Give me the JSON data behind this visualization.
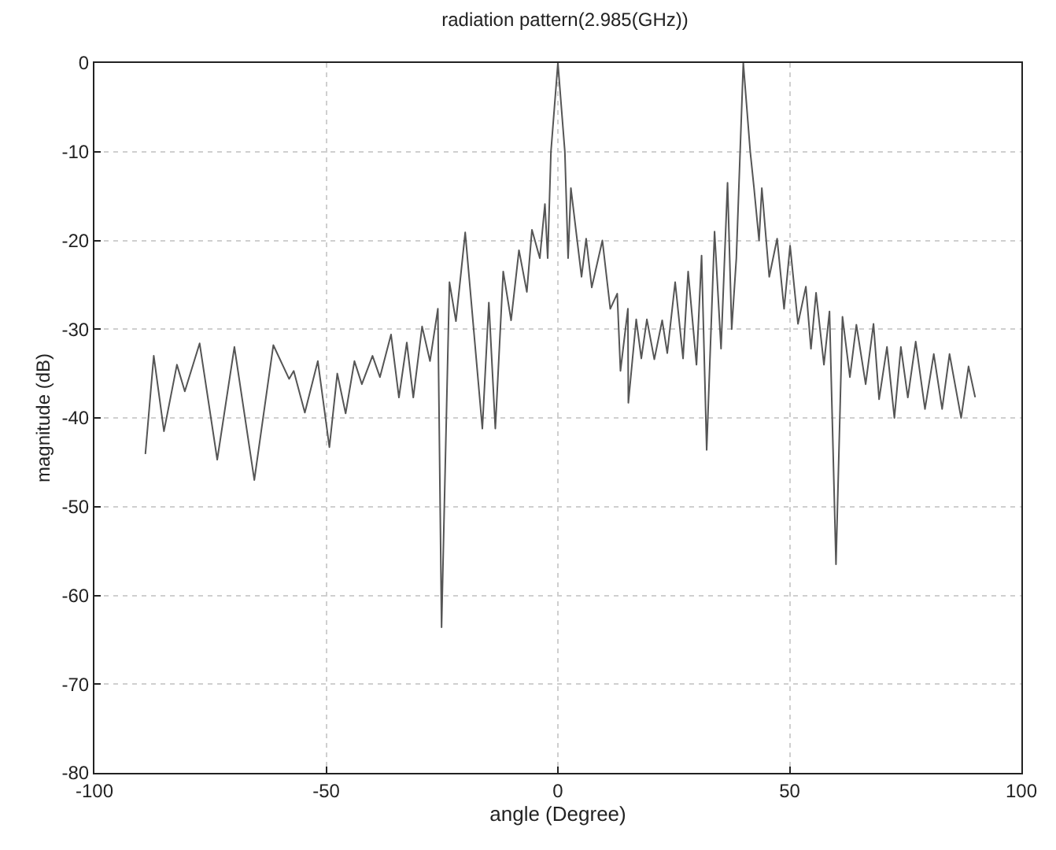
{
  "chart_data": {
    "type": "line",
    "title": "radiation pattern(2.985(GHz))",
    "xlabel": "angle (Degree)",
    "ylabel": "magnitude (dB)",
    "xlim": [
      -100,
      100
    ],
    "xticks": [
      -100,
      -50,
      0,
      50,
      100
    ],
    "ylim": [
      -80,
      0
    ],
    "yticks": [
      -80,
      -70,
      -60,
      -50,
      -40,
      -30,
      -20,
      -10,
      0
    ],
    "grid": true,
    "legend": false,
    "line_style": "solid",
    "series": [
      {
        "color": "#555555",
        "x": [
          -89,
          -87.2,
          -85,
          -82.2,
          -80.5,
          -77.3,
          -73.5,
          -69.8,
          -65.5,
          -61.4,
          -58,
          -57,
          -54.6,
          -51.8,
          -49.3,
          -47.6,
          -45.8,
          -43.9,
          -42.3,
          -40,
          -38.4,
          -36,
          -34.3,
          -32.6,
          -31.2,
          -29.3,
          -27.6,
          -25.9,
          -25.1,
          -23.4,
          -22,
          -20,
          -16.3,
          -14.9,
          -13.5,
          -11.8,
          -10.1,
          -8.4,
          -6.7,
          -5.6,
          -3.9,
          -2.8,
          -2.2,
          -1.5,
          0,
          1.5,
          2.2,
          2.8,
          5.1,
          6.1,
          7.3,
          9.6,
          11.3,
          12.8,
          13.5,
          15.1,
          15.2,
          16.9,
          18,
          19.2,
          20.8,
          22.5,
          23.6,
          25.3,
          27,
          28.1,
          29.9,
          31,
          32.1,
          33.8,
          35.2,
          36.6,
          37.5,
          38.5,
          40,
          41.5,
          42.3,
          43.4,
          44,
          45.6,
          47.3,
          48.8,
          50.1,
          51.8,
          53.5,
          54.6,
          55.7,
          57.4,
          58.6,
          60,
          61.4,
          63,
          64.4,
          66.4,
          68.1,
          69.3,
          71,
          72.6,
          74,
          75.5,
          77.2,
          79.2,
          81.1,
          82.9,
          84.5,
          87,
          88.6,
          90
        ],
        "values": [
          -44,
          -33,
          -41.5,
          -34,
          -37,
          -31.6,
          -44.7,
          -32,
          -47,
          -31.8,
          -35.6,
          -34.7,
          -39.4,
          -33.6,
          -43.3,
          -35,
          -39.5,
          -33.6,
          -36.2,
          -33,
          -35.4,
          -30.6,
          -37.7,
          -31.5,
          -37.7,
          -29.7,
          -33.6,
          -27.7,
          -63.6,
          -24.7,
          -29.1,
          -19.1,
          -41.2,
          -27,
          -41.2,
          -23.5,
          -29,
          -21.1,
          -25.8,
          -18.8,
          -22,
          -15.9,
          -22,
          -10,
          0,
          -10,
          -22,
          -14.1,
          -24.1,
          -19.8,
          -25.3,
          -20,
          -27.7,
          -26,
          -34.7,
          -27.7,
          -38.3,
          -28.9,
          -33.3,
          -28.9,
          -33.4,
          -29,
          -32.7,
          -24.7,
          -33.3,
          -23.5,
          -34,
          -21.7,
          -43.6,
          -19,
          -32.2,
          -13.5,
          -30,
          -22,
          0,
          -10,
          -14,
          -20,
          -14.1,
          -24.1,
          -19.8,
          -27.7,
          -20.6,
          -29.4,
          -25.2,
          -32.2,
          -25.9,
          -34,
          -28,
          -56.5,
          -28.6,
          -35.4,
          -29.5,
          -36.2,
          -29.4,
          -37.9,
          -32,
          -40,
          -32,
          -37.7,
          -31.4,
          -39,
          -32.8,
          -39,
          -32.8,
          -40,
          -34.2,
          -37.6
        ]
      }
    ]
  }
}
